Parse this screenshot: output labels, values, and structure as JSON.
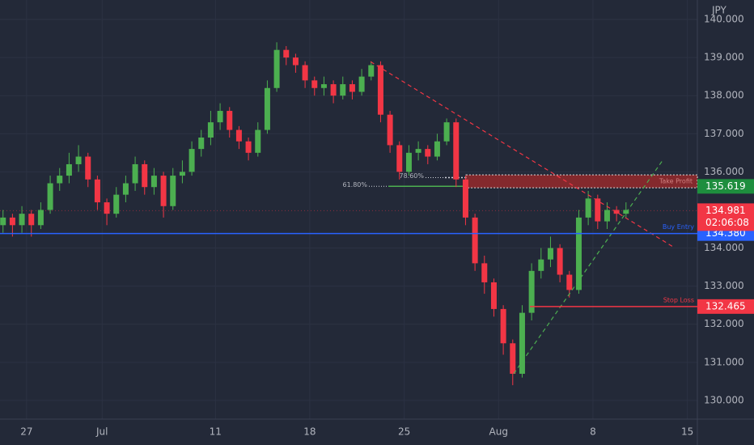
{
  "chart_data": {
    "type": "candlestick",
    "unit": "JPY",
    "x": [
      -1.25,
      -0.75,
      -0.25,
      0.25,
      0.75,
      1.25,
      1.75,
      2.25,
      2.75,
      3.25,
      3.75,
      4.25,
      4.75,
      5.25,
      5.75,
      6.25,
      6.75,
      7.25,
      7.75,
      8.25,
      8.75,
      9.25,
      9.75,
      10.25,
      10.75,
      11.25,
      11.75,
      12.25,
      12.75,
      13.25,
      13.75,
      14.25,
      14.75,
      15.25,
      15.75,
      16.25,
      16.75,
      17.25,
      17.75,
      18.25,
      18.75,
      19.25,
      19.75,
      20.25,
      20.75,
      21.25,
      21.75,
      22.25,
      22.75,
      23.25,
      23.75,
      24.25,
      24.75,
      25.25,
      25.75,
      26.25,
      26.75,
      27.25,
      27.75,
      28.25,
      28.75,
      29.25,
      29.75,
      30.25,
      30.75,
      31.25,
      31.75
    ],
    "open": [
      134.6,
      134.8,
      134.6,
      134.9,
      134.6,
      135.0,
      135.7,
      135.9,
      136.2,
      136.4,
      135.8,
      135.2,
      134.9,
      135.4,
      135.7,
      136.2,
      135.6,
      135.9,
      135.1,
      135.9,
      136.0,
      136.6,
      136.9,
      137.3,
      137.6,
      137.1,
      136.8,
      136.5,
      137.1,
      138.2,
      139.2,
      139.0,
      138.8,
      138.4,
      138.2,
      138.3,
      138.0,
      138.3,
      138.1,
      138.5,
      138.8,
      137.5,
      136.7,
      136.0,
      136.5,
      136.6,
      136.4,
      136.8,
      137.3,
      135.8,
      134.8,
      133.6,
      133.1,
      132.4,
      131.5,
      130.7,
      132.3,
      133.4,
      133.7,
      134.0,
      133.3,
      132.9,
      134.8,
      135.3,
      134.7,
      135.0,
      134.9
    ],
    "high": [
      135.0,
      134.9,
      135.1,
      135.0,
      135.2,
      135.9,
      136.1,
      136.5,
      136.7,
      136.5,
      135.9,
      135.3,
      135.6,
      135.9,
      136.4,
      136.3,
      136.1,
      136.0,
      136.1,
      136.3,
      136.8,
      137.1,
      137.6,
      137.8,
      137.7,
      137.2,
      136.9,
      137.3,
      138.4,
      139.4,
      139.3,
      139.1,
      138.9,
      138.5,
      138.5,
      138.4,
      138.5,
      138.4,
      138.7,
      138.9,
      138.9,
      137.6,
      136.8,
      136.7,
      136.8,
      136.7,
      137.0,
      137.4,
      137.4,
      135.9,
      134.9,
      133.8,
      133.2,
      132.5,
      131.6,
      132.5,
      133.6,
      134.0,
      134.3,
      134.1,
      133.4,
      135.0,
      135.5,
      135.4,
      135.2,
      135.1,
      135.2
    ],
    "low": [
      134.4,
      134.3,
      134.4,
      134.3,
      134.5,
      134.9,
      135.5,
      135.7,
      136.0,
      135.6,
      135.0,
      134.6,
      134.8,
      135.2,
      135.5,
      135.4,
      135.4,
      134.8,
      135.0,
      135.7,
      135.9,
      136.4,
      136.7,
      137.1,
      136.9,
      136.6,
      136.3,
      136.4,
      137.0,
      138.1,
      138.8,
      138.6,
      138.2,
      138.0,
      138.0,
      137.8,
      137.9,
      137.9,
      138.0,
      138.4,
      137.3,
      136.5,
      135.8,
      135.9,
      136.3,
      136.2,
      136.3,
      136.7,
      135.6,
      134.6,
      133.4,
      132.8,
      132.2,
      131.2,
      130.4,
      130.6,
      132.1,
      133.2,
      133.5,
      133.1,
      132.7,
      132.8,
      134.6,
      134.5,
      134.5,
      134.7,
      134.8
    ],
    "close": [
      134.8,
      134.6,
      134.9,
      134.6,
      135.0,
      135.7,
      135.9,
      136.2,
      136.4,
      135.8,
      135.2,
      134.9,
      135.4,
      135.7,
      136.2,
      135.6,
      135.9,
      135.1,
      135.9,
      136.0,
      136.6,
      136.9,
      137.3,
      137.6,
      137.1,
      136.8,
      136.5,
      137.1,
      138.2,
      139.2,
      139.0,
      138.8,
      138.4,
      138.2,
      138.3,
      138.0,
      138.3,
      138.1,
      138.5,
      138.8,
      137.5,
      136.7,
      136.0,
      136.5,
      136.6,
      136.4,
      136.8,
      137.3,
      135.8,
      134.8,
      133.6,
      133.1,
      132.4,
      131.5,
      130.7,
      132.3,
      133.4,
      133.7,
      134.0,
      133.3,
      132.9,
      134.8,
      135.3,
      134.7,
      135.0,
      134.9,
      135.0
    ],
    "up_color": "#4caf50",
    "down_color": "#f23645",
    "xlim": [
      -1.41,
      35.53
    ],
    "ylim": [
      129.51,
      140.51
    ],
    "xticks": [
      {
        "value": 0,
        "label": "27"
      },
      {
        "value": 4,
        "label": "Jul"
      },
      {
        "value": 10,
        "label": "11"
      },
      {
        "value": 15,
        "label": "18"
      },
      {
        "value": 20,
        "label": "25"
      },
      {
        "value": 25,
        "label": "Aug"
      },
      {
        "value": 30,
        "label": "8"
      },
      {
        "value": 35,
        "label": "15"
      }
    ],
    "yticks": [
      {
        "value": 130,
        "label": "130.000"
      },
      {
        "value": 131,
        "label": "131.000"
      },
      {
        "value": 132,
        "label": "132.000"
      },
      {
        "value": 133,
        "label": "133.000"
      },
      {
        "value": 134,
        "label": "134.000"
      },
      {
        "value": 136,
        "label": "136.000"
      },
      {
        "value": 137,
        "label": "137.000"
      },
      {
        "value": 138,
        "label": "138.000"
      },
      {
        "value": 139,
        "label": "139.000"
      },
      {
        "value": 140,
        "label": "140.000"
      }
    ],
    "grid": true,
    "levels": [
      {
        "name": "Buy Entry",
        "price": {
          "value": 134.38,
          "label": "134.380"
        },
        "from": -1.41,
        "color": "#2962ff"
      },
      {
        "name": "Stop Loss",
        "price": {
          "value": 132.465,
          "label": "132.465"
        },
        "from": 26.66,
        "color": "#f23645"
      }
    ],
    "zone": {
      "name": "Take Profit",
      "top": 135.92,
      "bottom": 135.58,
      "from": 23.27,
      "color": "#a52a2a",
      "price": {
        "value": 135.619,
        "label": "135.619"
      },
      "label_color": "#1e8e3e"
    },
    "fib_levels": [
      {
        "label": "78.60%",
        "price": 135.85,
        "from": 22.16,
        "to": 23.27,
        "color": "#d1d4dc"
      },
      {
        "label": "61.80%",
        "price": 135.62,
        "from": 19.16,
        "to": 23.27,
        "color": "#4caf50"
      }
    ],
    "trendlines": [
      {
        "color": "#f23645",
        "x": [
          18.22,
          34.25
        ],
        "y": [
          138.89,
          134.03
        ]
      },
      {
        "color": "#4caf50",
        "x": [
          25.8,
          33.73
        ],
        "y": [
          130.7,
          136.33
        ]
      }
    ],
    "current_price": {
      "value": 134.981,
      "label": "134.981"
    },
    "countdown": "02:06:08"
  }
}
